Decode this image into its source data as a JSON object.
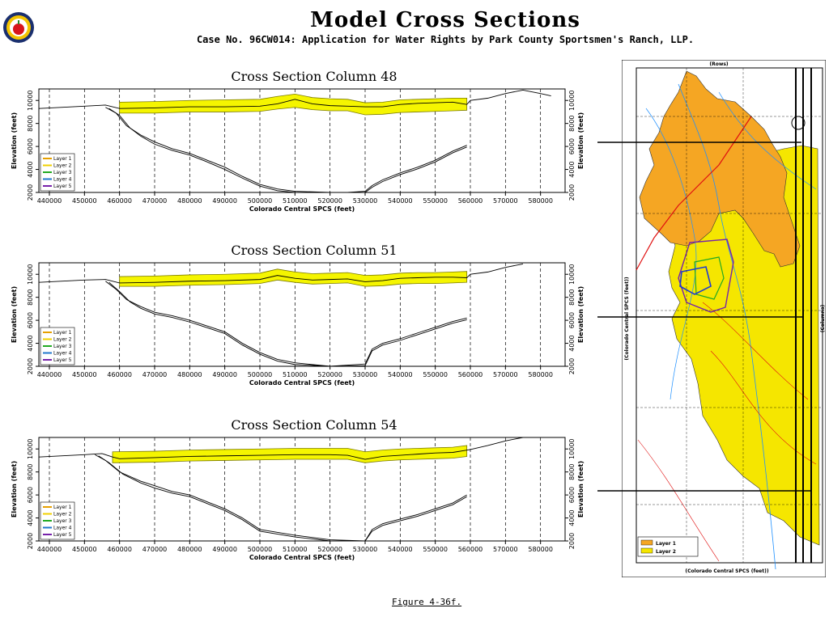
{
  "page": {
    "title": "Model Cross Sections",
    "subtitle": "Case No. 96CW014: Application for Water Rights by Park County Sportsmen's Ranch, LLP.",
    "figure_label": "Figure 4-36f."
  },
  "colors": {
    "layer_band": "#f5f500",
    "band_edge": "#7a7a00",
    "map_orange": "#f5a623",
    "map_yellow": "#f5e600"
  },
  "chart_data": [
    {
      "type": "line",
      "title": "Cross Section Column 48",
      "xlabel": "Colorado Central SPCS (feet)",
      "ylabel": "Elevation (feet)",
      "ylabel_right": "Elevation (feet)",
      "xlim": [
        437000,
        587000
      ],
      "ylim": [
        2000,
        11000
      ],
      "xticks": [
        440000,
        450000,
        460000,
        470000,
        480000,
        490000,
        500000,
        510000,
        520000,
        530000,
        540000,
        550000,
        560000,
        570000,
        580000
      ],
      "yticks": [
        2000,
        4000,
        6000,
        8000,
        10000
      ],
      "grid": "vertical-dashed",
      "legend": "bottom-left",
      "legend_entries": [
        {
          "name": "Layer 1",
          "color": "#e6a000"
        },
        {
          "name": "Layer 2",
          "color": "#f0d000"
        },
        {
          "name": "Layer 3",
          "color": "#22aa22"
        },
        {
          "name": "Layer 4",
          "color": "#2277cc"
        },
        {
          "name": "Layer 5",
          "color": "#7722aa"
        }
      ],
      "series": [
        {
          "role": "surface",
          "x": [
            437000,
            450000,
            456000,
            460000,
            470000,
            480000,
            490000,
            500000,
            505000,
            510000,
            515000,
            520000,
            525000,
            530000,
            535000,
            540000,
            545000,
            550000,
            555000,
            559000,
            560000,
            565000,
            570000,
            575000,
            580000,
            583000
          ],
          "y": [
            9300,
            9500,
            9600,
            9300,
            9350,
            9450,
            9450,
            9500,
            9700,
            10100,
            9700,
            9550,
            9500,
            9450,
            9450,
            9650,
            9750,
            9800,
            9850,
            9650,
            10000,
            10200,
            10600,
            10900,
            10600,
            10400
          ]
        },
        {
          "role": "layer_top",
          "x": [
            460000,
            470000,
            480000,
            490000,
            500000,
            505000,
            510000,
            515000,
            520000,
            525000,
            530000,
            535000,
            540000,
            545000,
            550000,
            555000,
            559000
          ],
          "y": [
            9850,
            9900,
            10000,
            10050,
            10100,
            10350,
            10550,
            10250,
            10150,
            10100,
            9800,
            9850,
            10050,
            10100,
            10150,
            10200,
            10200
          ]
        },
        {
          "role": "layer_bottom",
          "x": [
            460000,
            470000,
            480000,
            490000,
            500000,
            505000,
            510000,
            515000,
            520000,
            525000,
            530000,
            535000,
            540000,
            545000,
            550000,
            555000,
            559000
          ],
          "y": [
            8900,
            8900,
            9000,
            9000,
            9050,
            9250,
            9400,
            9200,
            9100,
            9100,
            8750,
            8800,
            8950,
            9000,
            9050,
            9100,
            9150
          ]
        },
        {
          "role": "basement",
          "x": [
            456000,
            459000,
            462000,
            466000,
            470000,
            475000,
            480000,
            485000,
            490000,
            495000,
            500000,
            505000,
            510000,
            520000,
            525000,
            530000,
            532000,
            535000,
            540000,
            545000,
            550000,
            555000,
            559000
          ],
          "y": [
            9400,
            8900,
            7800,
            7000,
            6400,
            5800,
            5400,
            4800,
            4200,
            3400,
            2700,
            2300,
            2100,
            1900,
            1950,
            2100,
            2600,
            3100,
            3700,
            4200,
            4800,
            5600,
            6100
          ]
        },
        {
          "role": "basement2",
          "x": [
            457000,
            460000,
            463000,
            466000,
            470000,
            475000,
            480000,
            485000,
            490000,
            495000,
            500000,
            505000,
            510000,
            520000,
            525000,
            530000,
            532000,
            535000,
            540000,
            545000,
            550000,
            555000,
            559000
          ],
          "y": [
            9300,
            8700,
            7600,
            6900,
            6200,
            5650,
            5250,
            4650,
            4000,
            3250,
            2550,
            2150,
            1950,
            1800,
            1850,
            2000,
            2450,
            2950,
            3550,
            4050,
            4650,
            5450,
            5950
          ]
        }
      ]
    },
    {
      "type": "line",
      "title": "Cross Section Column 51",
      "xlabel": "Colorado Central SPCS (feet)",
      "ylabel": "Elevation (feet)",
      "ylabel_right": "Elevation (feet)",
      "xlim": [
        437000,
        587000
      ],
      "ylim": [
        2000,
        11000
      ],
      "xticks": [
        440000,
        450000,
        460000,
        470000,
        480000,
        490000,
        500000,
        510000,
        520000,
        530000,
        540000,
        550000,
        560000,
        570000,
        580000
      ],
      "yticks": [
        2000,
        4000,
        6000,
        8000,
        10000
      ],
      "grid": "vertical-dashed",
      "legend": "bottom-left",
      "legend_entries": [
        {
          "name": "Layer 1",
          "color": "#e6a000"
        },
        {
          "name": "Layer 2",
          "color": "#f0d000"
        },
        {
          "name": "Layer 3",
          "color": "#22aa22"
        },
        {
          "name": "Layer 4",
          "color": "#2277cc"
        },
        {
          "name": "Layer 5",
          "color": "#7722aa"
        }
      ],
      "series": [
        {
          "role": "surface",
          "x": [
            437000,
            450000,
            456000,
            460000,
            470000,
            480000,
            490000,
            500000,
            505000,
            510000,
            515000,
            520000,
            525000,
            530000,
            535000,
            540000,
            545000,
            550000,
            555000,
            559000,
            560000,
            565000,
            570000,
            575000
          ],
          "y": [
            9300,
            9500,
            9550,
            9250,
            9300,
            9400,
            9450,
            9550,
            9900,
            9650,
            9500,
            9550,
            9600,
            9350,
            9450,
            9650,
            9700,
            9750,
            9750,
            9700,
            10000,
            10200,
            10600,
            10900
          ]
        },
        {
          "role": "layer_top",
          "x": [
            460000,
            470000,
            480000,
            490000,
            500000,
            505000,
            510000,
            515000,
            520000,
            525000,
            530000,
            535000,
            540000,
            545000,
            550000,
            555000,
            559000
          ],
          "y": [
            9800,
            9850,
            9950,
            10000,
            10100,
            10450,
            10200,
            10050,
            10100,
            10150,
            9900,
            9950,
            10100,
            10150,
            10150,
            10200,
            10250
          ]
        },
        {
          "role": "layer_bottom",
          "x": [
            460000,
            470000,
            480000,
            490000,
            500000,
            505000,
            510000,
            515000,
            520000,
            525000,
            530000,
            535000,
            540000,
            545000,
            550000,
            555000,
            559000
          ],
          "y": [
            8950,
            8950,
            9050,
            9100,
            9200,
            9500,
            9300,
            9150,
            9200,
            9250,
            8950,
            9000,
            9150,
            9200,
            9200,
            9250,
            9300
          ]
        },
        {
          "role": "basement",
          "x": [
            456000,
            459000,
            462000,
            466000,
            470000,
            475000,
            480000,
            485000,
            490000,
            495000,
            500000,
            505000,
            510000,
            520000,
            530000,
            532000,
            535000,
            540000,
            545000,
            550000,
            555000,
            559000
          ],
          "y": [
            9400,
            8700,
            7800,
            7200,
            6700,
            6400,
            6000,
            5500,
            5000,
            4000,
            3200,
            2600,
            2300,
            2000,
            2200,
            3500,
            4000,
            4400,
            4900,
            5400,
            5900,
            6200
          ]
        },
        {
          "role": "basement2",
          "x": [
            457000,
            460000,
            463000,
            466000,
            470000,
            475000,
            480000,
            485000,
            490000,
            495000,
            500000,
            505000,
            510000,
            520000,
            530000,
            532000,
            535000,
            540000,
            545000,
            550000,
            555000,
            559000
          ],
          "y": [
            9300,
            8500,
            7600,
            7050,
            6550,
            6250,
            5850,
            5350,
            4850,
            3850,
            3050,
            2450,
            2150,
            1850,
            2050,
            3350,
            3850,
            4250,
            4750,
            5250,
            5750,
            6050
          ]
        }
      ]
    },
    {
      "type": "line",
      "title": "Cross Section Column 54",
      "xlabel": "Colorado Central SPCS (feet)",
      "ylabel": "Elevation (feet)",
      "ylabel_right": "Elevation (feet)",
      "xlim": [
        437000,
        587000
      ],
      "ylim": [
        2000,
        11000
      ],
      "xticks": [
        440000,
        450000,
        460000,
        470000,
        480000,
        490000,
        500000,
        510000,
        520000,
        530000,
        540000,
        550000,
        560000,
        570000,
        580000
      ],
      "yticks": [
        2000,
        4000,
        6000,
        8000,
        10000
      ],
      "grid": "vertical-dashed",
      "legend": "bottom-left",
      "legend_entries": [
        {
          "name": "Layer 1",
          "color": "#e6a000"
        },
        {
          "name": "Layer 2",
          "color": "#f0d000"
        },
        {
          "name": "Layer 3",
          "color": "#22aa22"
        },
        {
          "name": "Layer 4",
          "color": "#2277cc"
        },
        {
          "name": "Layer 5",
          "color": "#7722aa"
        }
      ],
      "series": [
        {
          "role": "surface",
          "x": [
            437000,
            450000,
            455000,
            458000,
            460000,
            470000,
            480000,
            490000,
            500000,
            510000,
            520000,
            525000,
            530000,
            535000,
            540000,
            545000,
            550000,
            555000,
            559000,
            560000,
            565000,
            570000,
            575000
          ],
          "y": [
            9300,
            9500,
            9600,
            9300,
            9150,
            9250,
            9350,
            9400,
            9450,
            9500,
            9500,
            9450,
            9100,
            9350,
            9450,
            9550,
            9650,
            9700,
            9900,
            9950,
            10300,
            10700,
            11000
          ]
        },
        {
          "role": "layer_top",
          "x": [
            458000,
            470000,
            480000,
            490000,
            500000,
            510000,
            520000,
            525000,
            530000,
            535000,
            540000,
            545000,
            550000,
            555000,
            559000
          ],
          "y": [
            9750,
            9800,
            9900,
            9950,
            10000,
            10050,
            10050,
            10050,
            9750,
            9900,
            10000,
            10050,
            10100,
            10150,
            10300
          ]
        },
        {
          "role": "layer_bottom",
          "x": [
            458000,
            470000,
            480000,
            490000,
            500000,
            510000,
            520000,
            525000,
            530000,
            535000,
            540000,
            545000,
            550000,
            555000,
            559000
          ],
          "y": [
            8800,
            8850,
            8950,
            9000,
            9050,
            9100,
            9100,
            9100,
            8800,
            8950,
            9050,
            9100,
            9150,
            9200,
            9350
          ]
        },
        {
          "role": "basement",
          "x": [
            453000,
            456000,
            460000,
            466000,
            470000,
            475000,
            480000,
            485000,
            490000,
            495000,
            500000,
            510000,
            520000,
            530000,
            532000,
            535000,
            540000,
            545000,
            550000,
            555000,
            559000
          ],
          "y": [
            9500,
            9000,
            8000,
            7200,
            6800,
            6300,
            6000,
            5400,
            4800,
            4000,
            3000,
            2500,
            2100,
            2000,
            3000,
            3500,
            3900,
            4300,
            4800,
            5300,
            6000
          ]
        },
        {
          "role": "basement2",
          "x": [
            454000,
            457000,
            461000,
            466000,
            470000,
            475000,
            480000,
            485000,
            490000,
            495000,
            500000,
            510000,
            520000,
            530000,
            532000,
            535000,
            540000,
            545000,
            550000,
            555000,
            559000
          ],
          "y": [
            9400,
            8800,
            7800,
            7050,
            6600,
            6150,
            5850,
            5250,
            4650,
            3850,
            2850,
            2350,
            1950,
            1850,
            2850,
            3350,
            3750,
            4150,
            4650,
            5150,
            5850
          ]
        }
      ]
    }
  ],
  "map": {
    "top_label": "(Rows)",
    "right_label": "(Columns)",
    "left_label": "(Colorado Central SPCS (feet))",
    "bottom_label": "(Colorado Central SPCS (feet))",
    "legend": [
      {
        "name": "Layer 1",
        "color": "#f5a623"
      },
      {
        "name": "Layer 2",
        "color": "#f5e600"
      }
    ]
  }
}
